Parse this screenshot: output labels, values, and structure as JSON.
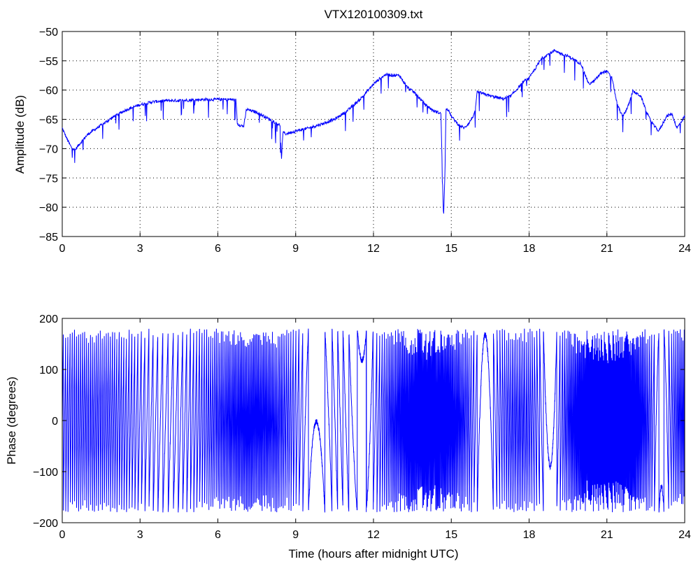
{
  "chart_data": [
    {
      "type": "line",
      "title": "VTX120100309.txt",
      "xlabel": "",
      "ylabel": "Amplitude (dB)",
      "xlim": [
        0,
        24
      ],
      "ylim": [
        -85,
        -50
      ],
      "xticks": [
        "0",
        "3",
        "6",
        "9",
        "12",
        "15",
        "18",
        "21",
        "24"
      ],
      "yticks": [
        "-50",
        "-55",
        "-60",
        "-65",
        "-70",
        "-75",
        "-80",
        "-85"
      ],
      "grid": true,
      "line_color": "#0000ff",
      "series": [
        {
          "x": [
            0,
            0.2,
            0.35,
            0.5,
            0.7,
            1.0,
            1.5,
            2.0,
            2.5,
            3.0,
            3.5,
            4.0,
            4.5,
            5.0,
            5.5,
            6.0,
            6.5,
            6.7,
            6.75,
            7.0,
            7.1,
            7.5,
            8.0,
            8.4,
            8.45,
            8.5,
            8.55,
            8.6,
            9.0,
            9.5,
            10.0,
            10.5,
            11.0,
            11.5,
            12.0,
            12.3,
            12.5,
            12.8,
            13.0,
            13.3,
            13.6,
            14.0,
            14.3,
            14.6,
            14.65,
            14.7,
            14.75,
            14.8,
            14.9,
            15.0,
            15.3,
            15.5,
            15.7,
            15.9,
            16.0,
            16.5,
            17.0,
            17.3,
            17.5,
            17.8,
            18.0,
            18.5,
            19.0,
            19.3,
            19.5,
            20.0,
            20.3,
            20.5,
            20.8,
            21.0,
            21.2,
            21.4,
            21.6,
            21.8,
            22.0,
            22.3,
            22.6,
            22.8,
            23.0,
            23.3,
            23.5,
            23.7,
            24.0
          ],
          "y": [
            -66.5,
            -68.5,
            -69.8,
            -70.2,
            -69.0,
            -67.5,
            -66.0,
            -64.5,
            -63.3,
            -62.5,
            -62.0,
            -61.8,
            -61.8,
            -61.7,
            -61.6,
            -61.6,
            -61.6,
            -61.7,
            -65.8,
            -66.2,
            -63.3,
            -63.8,
            -65.0,
            -66.0,
            -72.0,
            -67.5,
            -67.2,
            -67.5,
            -67.0,
            -66.5,
            -65.8,
            -65.0,
            -63.5,
            -61.5,
            -59.0,
            -57.8,
            -57.3,
            -57.5,
            -57.5,
            -59.5,
            -60.5,
            -62.5,
            -63.5,
            -64.0,
            -73.0,
            -82.0,
            -75.0,
            -63.0,
            -63.5,
            -64.5,
            -66.0,
            -66.5,
            -65.5,
            -64.0,
            -60.3,
            -61.0,
            -61.5,
            -61.0,
            -60.0,
            -58.5,
            -58.0,
            -54.5,
            -53.2,
            -54.0,
            -54.2,
            -55.5,
            -59.0,
            -58.5,
            -57.0,
            -56.8,
            -58.0,
            -62.5,
            -64.5,
            -63.0,
            -60.2,
            -61.0,
            -64.5,
            -66.0,
            -67.0,
            -64.5,
            -64.0,
            -66.5,
            -64.5
          ]
        }
      ]
    },
    {
      "type": "line",
      "title": "",
      "xlabel": "Time (hours after midnight UTC)",
      "ylabel": "Phase (degrees)",
      "xlim": [
        0,
        24
      ],
      "ylim": [
        -200,
        200
      ],
      "xticks": [
        "0",
        "3",
        "6",
        "9",
        "12",
        "15",
        "18",
        "21",
        "24"
      ],
      "yticks": [
        "200",
        "100",
        "0",
        "−100",
        "−200"
      ],
      "grid": false,
      "line_color": "#0000ff",
      "wrap_range": [
        -180,
        180
      ],
      "approx_wraps_per_hour": 11
    }
  ]
}
